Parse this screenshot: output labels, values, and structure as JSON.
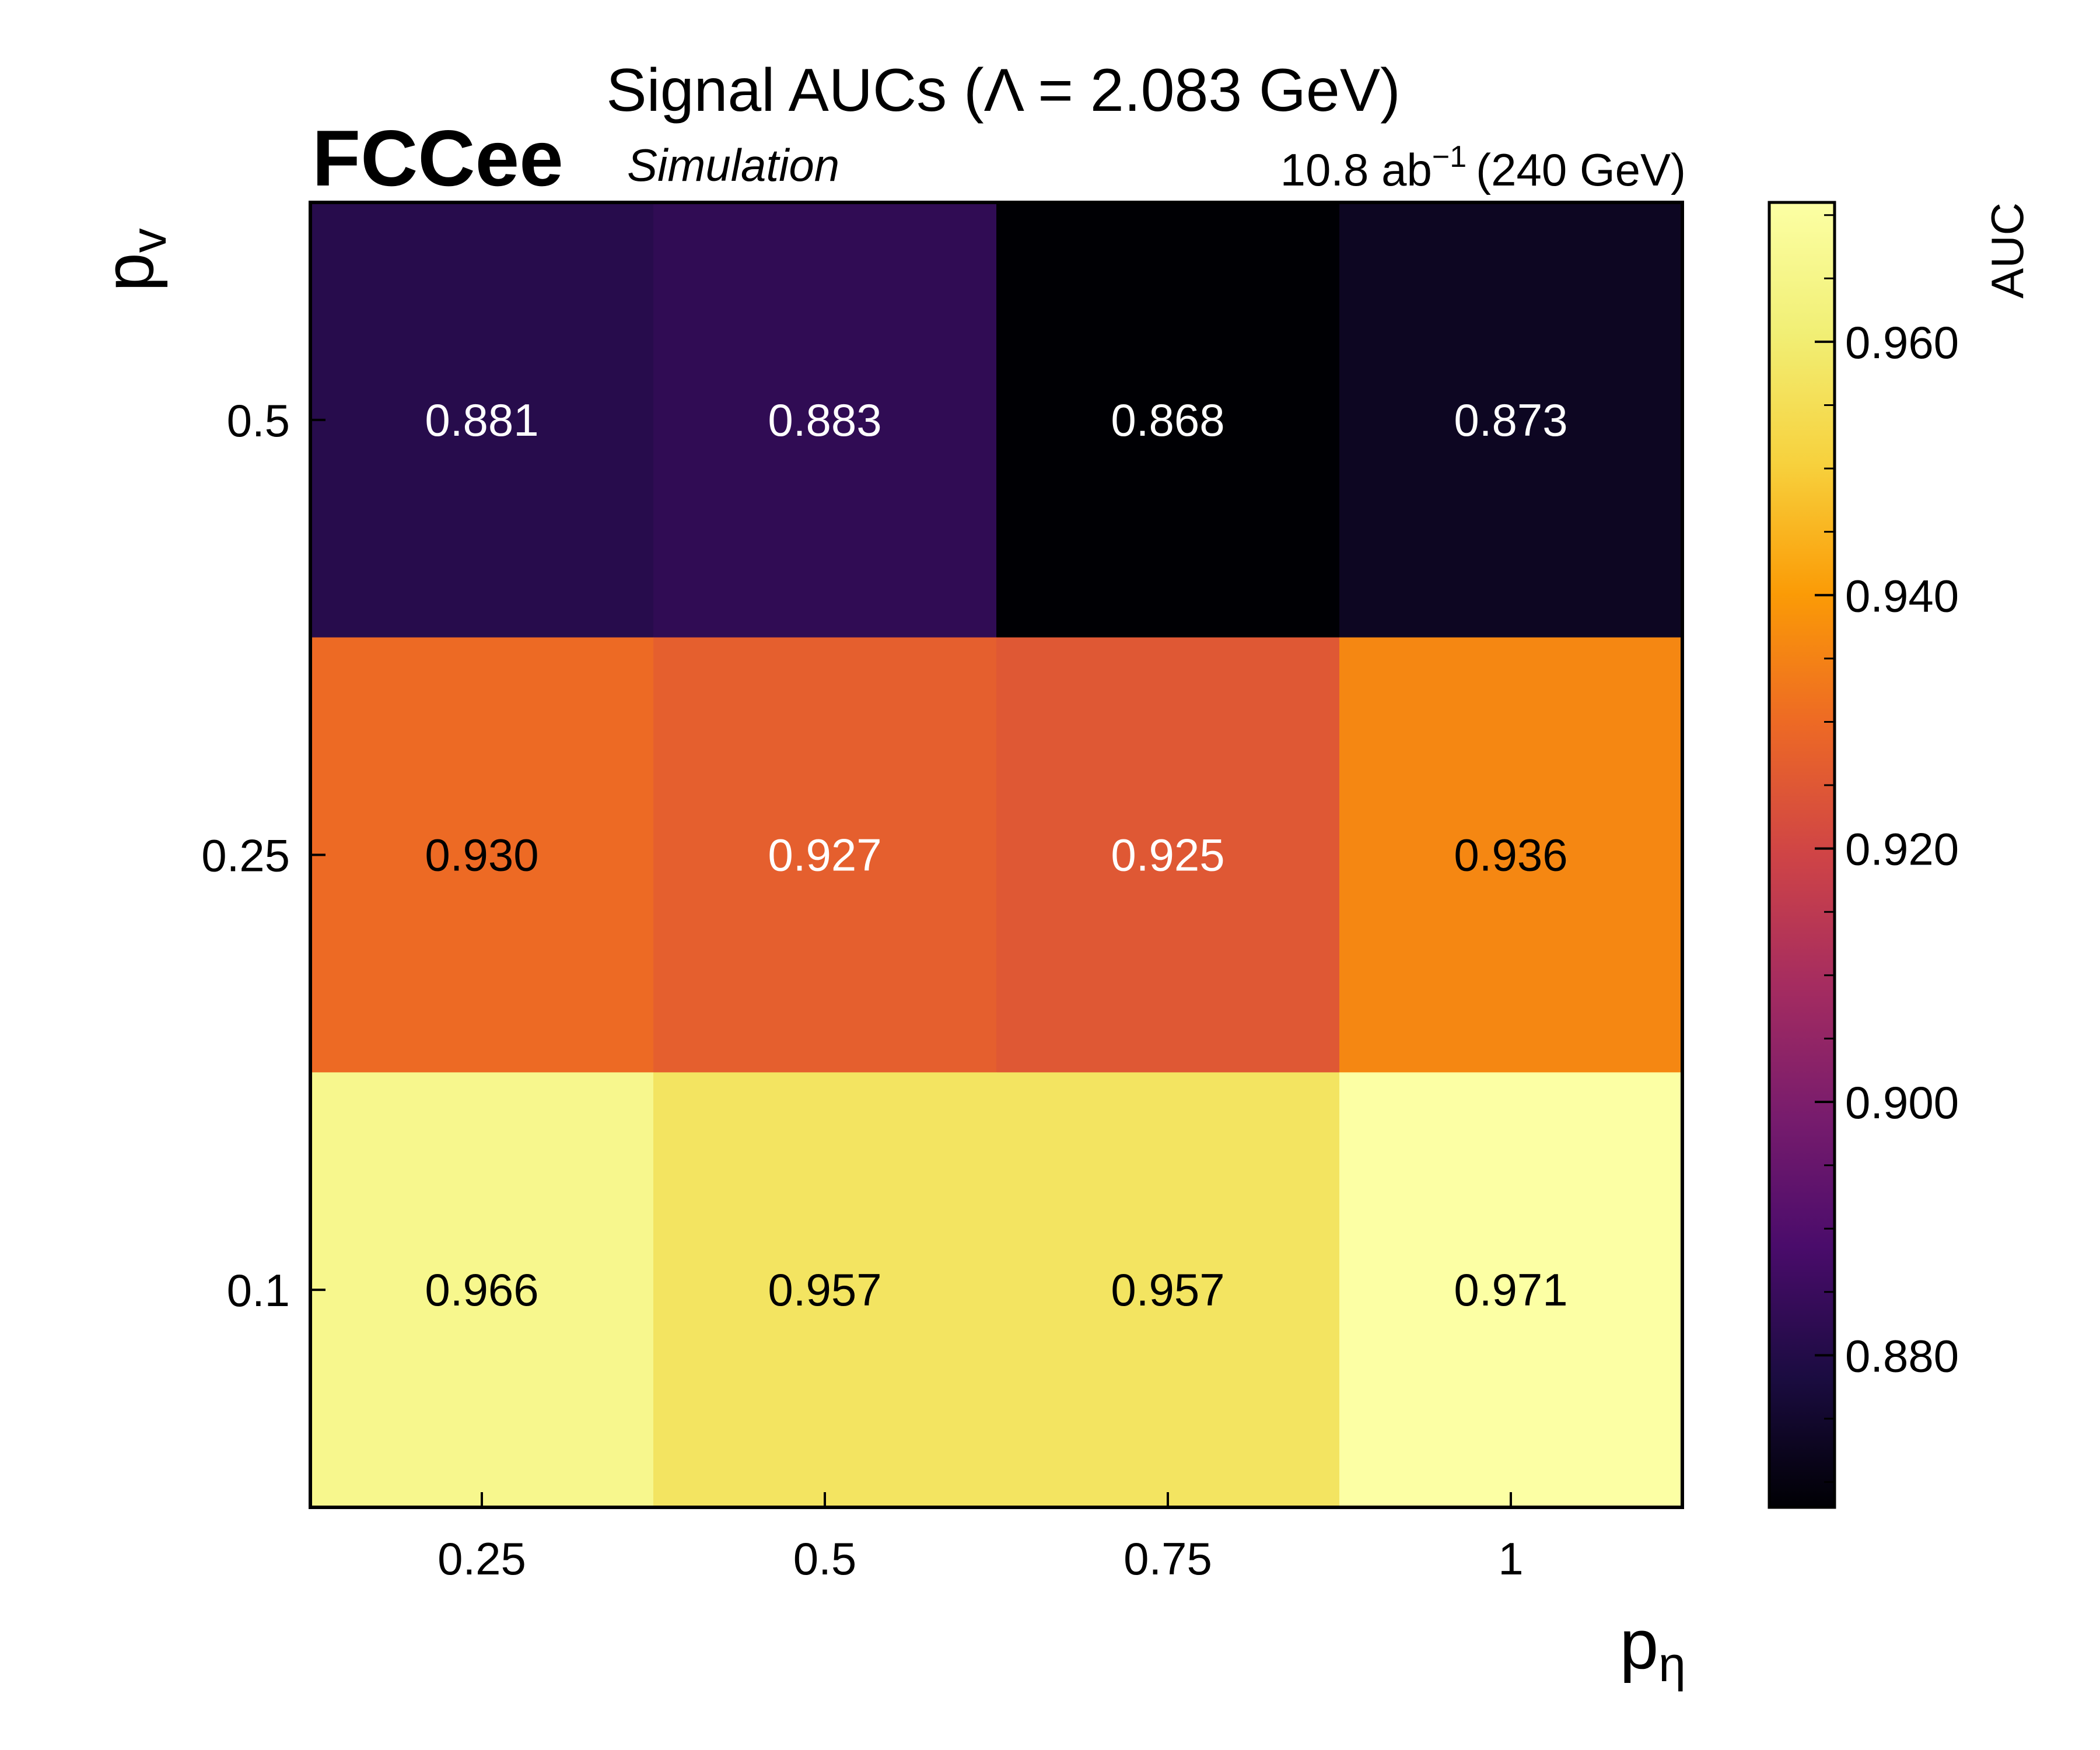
{
  "chart_data": {
    "type": "heatmap",
    "title": "Signal AUCs (Λ = 2.083 GeV)",
    "experiment": "FCCee",
    "experiment_tag": "Simulation",
    "lumi_value": "10.8 ab",
    "lumi_exponent": "−1",
    "lumi_energy": "(240 GeV)",
    "xlabel": {
      "main": "p",
      "sub": "η"
    },
    "ylabel": {
      "main": "p",
      "sub": "v"
    },
    "x_categories": [
      "0.25",
      "0.5",
      "0.75",
      "1"
    ],
    "y_categories": [
      "0.5",
      "0.25",
      "0.1"
    ],
    "values": [
      [
        0.881,
        0.883,
        0.868,
        0.873
      ],
      [
        0.93,
        0.927,
        0.925,
        0.936
      ],
      [
        0.966,
        0.957,
        0.957,
        0.971
      ]
    ],
    "cell_labels": [
      [
        "0.881",
        "0.883",
        "0.868",
        "0.873"
      ],
      [
        "0.930",
        "0.927",
        "0.925",
        "0.936"
      ],
      [
        "0.966",
        "0.957",
        "0.957",
        "0.971"
      ]
    ],
    "colormap": "inferno",
    "colorbar": {
      "label": "AUC",
      "vmin": 0.868,
      "vmax": 0.971,
      "ticks": [
        0.88,
        0.9,
        0.92,
        0.94,
        0.96
      ],
      "tick_labels": [
        "0.880",
        "0.900",
        "0.920",
        "0.940",
        "0.960"
      ]
    }
  }
}
